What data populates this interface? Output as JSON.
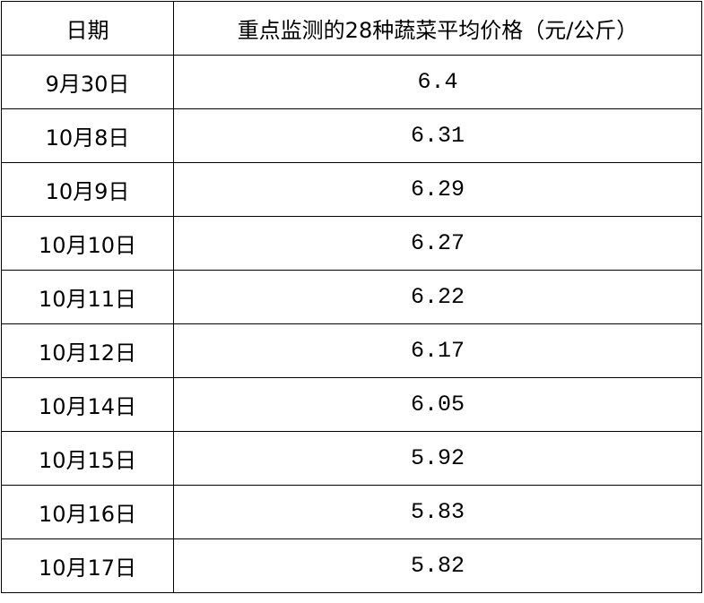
{
  "table": {
    "header": [
      "日期",
      "重点监测的28种蔬菜平均价格（元/公斤）"
    ],
    "rows": [
      [
        "9月30日",
        "6.4"
      ],
      [
        "10月8日",
        "6.31"
      ],
      [
        "10月9日",
        "6.29"
      ],
      [
        "10月10日",
        "6.27"
      ],
      [
        "10月11日",
        "6.22"
      ],
      [
        "10月12日",
        "6.17"
      ],
      [
        "10月14日",
        "6.05"
      ],
      [
        "10月15日",
        "5.92"
      ],
      [
        "10月16日",
        "5.83"
      ],
      [
        "10月17日",
        "5.82"
      ]
    ]
  }
}
